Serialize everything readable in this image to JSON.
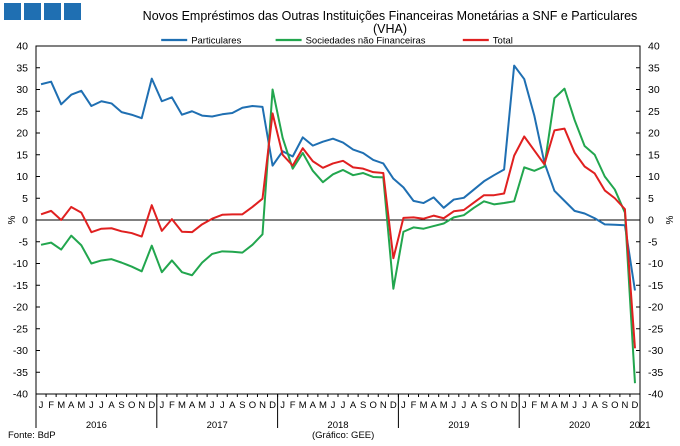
{
  "title_line1": "Novos Empréstimos das Outras Instituições Financeiras Monetárias a SNF e Particulares",
  "title_line2": "(VHA)",
  "source": "Fonte: BdP",
  "credit": "(Gráfico: GEE)",
  "chart_data": {
    "type": "line",
    "ylabel_left": "%",
    "ylabel_right": "%",
    "ylim": [
      -40,
      40
    ],
    "yticks": [
      -40,
      -35,
      -30,
      -25,
      -20,
      -15,
      -10,
      -5,
      0,
      5,
      10,
      15,
      20,
      25,
      30,
      35,
      40
    ],
    "grid": false,
    "legend_position": "top",
    "month_letters": [
      "J",
      "F",
      "M",
      "A",
      "M",
      "J",
      "J",
      "A",
      "S",
      "O",
      "N",
      "D"
    ],
    "first_period": {
      "year": 2016,
      "month": 1
    },
    "year_labels": [
      "2016",
      "2017",
      "2018",
      "2019",
      "2020",
      "2021"
    ],
    "series": [
      {
        "name": "Particulares",
        "color": "#1f6fb2",
        "values": [
          31.2,
          31.8,
          26.6,
          28.8,
          29.7,
          26.2,
          27.3,
          26.8,
          24.8,
          24.2,
          23.4,
          32.5,
          27.3,
          28.2,
          24.2,
          25.0,
          24.0,
          23.8,
          24.3,
          24.6,
          25.8,
          26.2,
          26.0,
          12.5,
          15.8,
          14.6,
          19.0,
          17.1,
          18.0,
          18.7,
          17.8,
          16.2,
          15.4,
          13.8,
          13.0,
          9.5,
          7.5,
          4.4,
          3.9,
          5.2,
          2.8,
          4.7,
          5.1,
          7.0,
          8.9,
          10.3,
          11.6,
          35.5,
          32.4,
          24.0,
          13.2,
          6.7,
          4.4,
          2.1,
          1.5,
          0.4,
          -1.0,
          -1.1,
          -1.2,
          -16.2
        ]
      },
      {
        "name": "Sociedades não Financeiras",
        "color": "#22a64e",
        "values": [
          -5.7,
          -5.2,
          -6.8,
          -3.6,
          -5.8,
          -10.0,
          -9.3,
          -9.0,
          -9.8,
          -10.7,
          -11.8,
          -5.9,
          -12.0,
          -9.3,
          -12.0,
          -12.7,
          -9.8,
          -7.8,
          -7.2,
          -7.3,
          -7.5,
          -5.7,
          -3.3,
          30.0,
          18.9,
          11.8,
          15.4,
          11.3,
          8.7,
          10.5,
          11.5,
          10.3,
          10.8,
          9.9,
          9.8,
          -15.8,
          -2.7,
          -1.7,
          -2.0,
          -1.4,
          -0.8,
          0.6,
          1.1,
          2.8,
          4.3,
          3.6,
          3.9,
          4.3,
          12.1,
          11.3,
          12.3,
          28.0,
          30.2,
          23.0,
          17.0,
          15.0,
          10.0,
          7.0,
          1.7,
          -37.5
        ]
      },
      {
        "name": "Total",
        "color": "#e02020",
        "values": [
          1.3,
          2.1,
          0.0,
          3.0,
          1.7,
          -2.8,
          -2.0,
          -1.9,
          -2.6,
          -3.0,
          -3.8,
          3.4,
          -2.5,
          0.2,
          -2.7,
          -2.8,
          -1.0,
          0.3,
          1.2,
          1.3,
          1.3,
          3.0,
          4.9,
          24.5,
          15.0,
          12.5,
          16.5,
          13.5,
          12.0,
          13.0,
          13.6,
          12.1,
          11.8,
          11.0,
          10.8,
          -8.8,
          0.5,
          0.6,
          0.3,
          1.0,
          0.4,
          2.0,
          2.3,
          4.0,
          5.7,
          5.7,
          6.1,
          14.8,
          19.2,
          16.0,
          12.8,
          20.6,
          21.0,
          15.5,
          12.3,
          10.7,
          6.8,
          5.0,
          2.5,
          -29.5
        ]
      }
    ]
  }
}
